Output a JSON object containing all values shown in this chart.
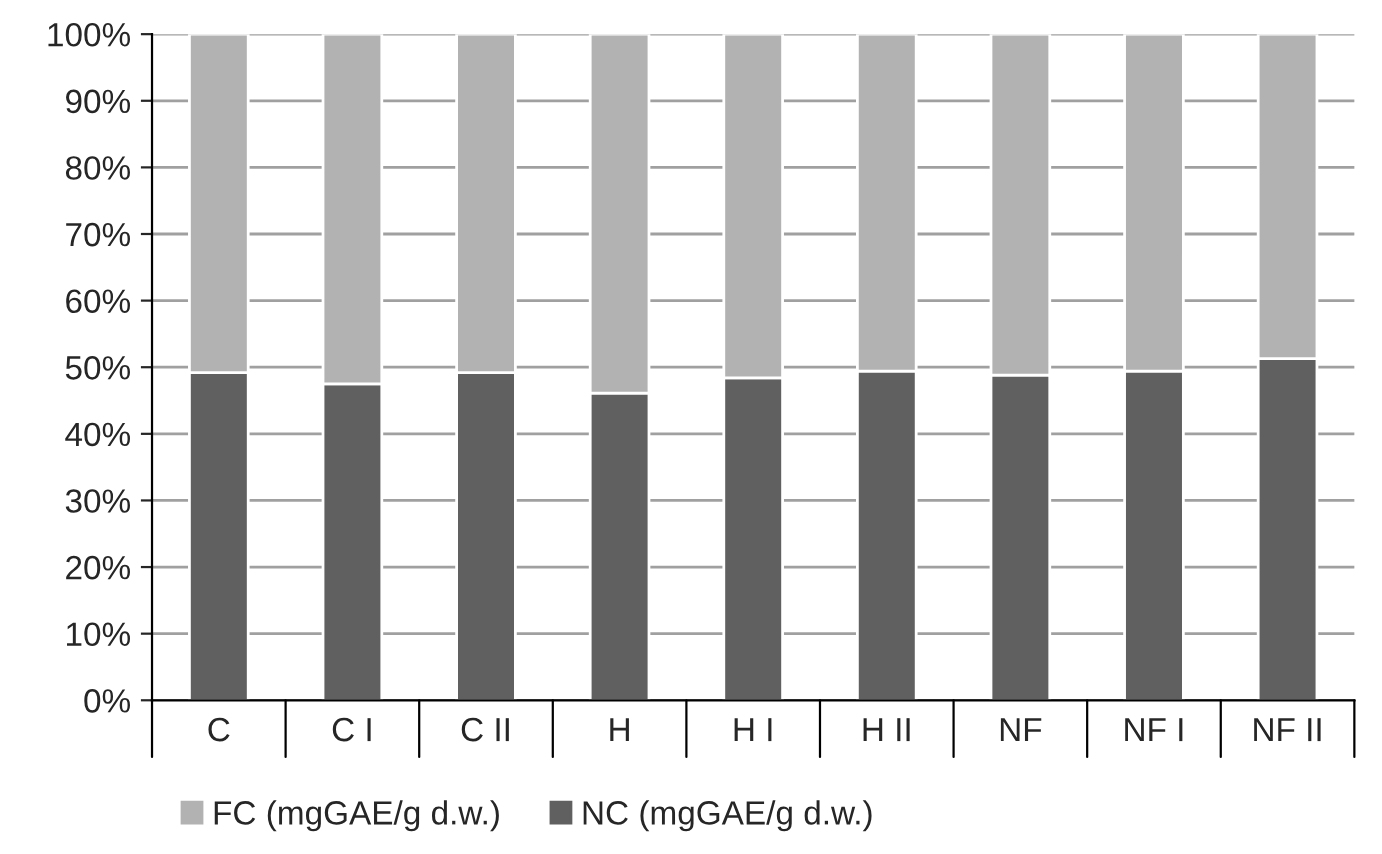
{
  "chart_data": {
    "type": "bar",
    "stacked": true,
    "categories": [
      "C",
      "C I",
      "C II",
      "H",
      "H I",
      "H II",
      "NF",
      "NF I",
      "NF II"
    ],
    "series": [
      {
        "name": "NC (mgGAE/g d.w.)",
        "color": "#606060",
        "values": [
          49.2,
          47.5,
          49.2,
          46.1,
          48.4,
          49.4,
          48.8,
          49.4,
          51.3
        ]
      },
      {
        "name": "FC (mgGAE/g d.w.)",
        "color": "#b2b2b2",
        "values": [
          50.8,
          52.5,
          50.8,
          53.9,
          51.6,
          50.6,
          51.2,
          50.6,
          48.7
        ]
      }
    ],
    "ylim": [
      0,
      100
    ],
    "yticks": [
      {
        "value": 0,
        "label": "0%"
      },
      {
        "value": 10,
        "label": "10%"
      },
      {
        "value": 20,
        "label": "20%"
      },
      {
        "value": 30,
        "label": "30%"
      },
      {
        "value": 40,
        "label": "40%"
      },
      {
        "value": 50,
        "label": "50%"
      },
      {
        "value": 60,
        "label": "60%"
      },
      {
        "value": 70,
        "label": "70%"
      },
      {
        "value": 80,
        "label": "80%"
      },
      {
        "value": 90,
        "label": "90%"
      },
      {
        "value": 100,
        "label": "100%"
      }
    ],
    "grid": "y",
    "legend": "bottom"
  }
}
